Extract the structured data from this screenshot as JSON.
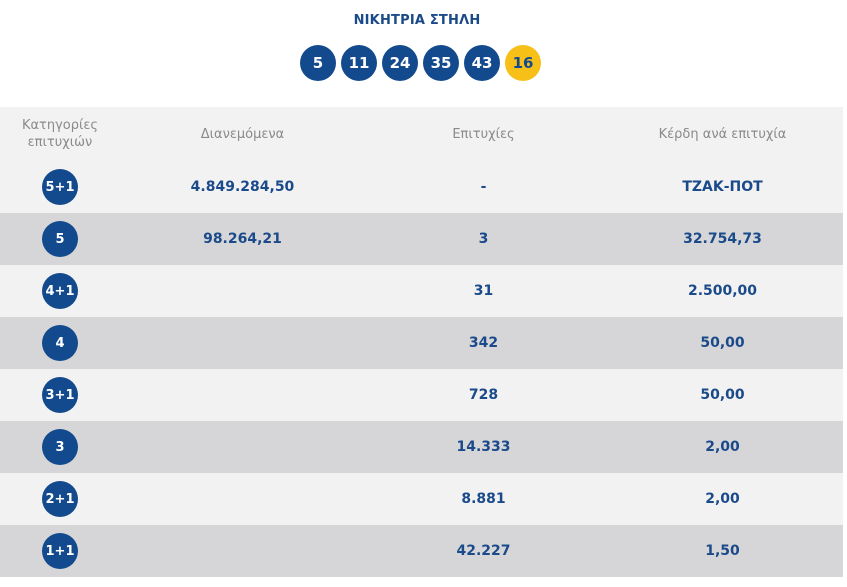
{
  "header": {
    "title": "ΝΙΚΗΤΡΙΑ ΣΤΗΛΗ",
    "numbers": [
      "5",
      "11",
      "24",
      "35",
      "43"
    ],
    "joker": "16"
  },
  "table": {
    "columns": [
      "Κατηγορίες επιτυχιών",
      "Διανεμόμενα",
      "Επιτυχίες",
      "Κέρδη ανά επιτυχία"
    ],
    "rows": [
      {
        "category": "5+1",
        "distributed": "4.849.284,50",
        "winners": "-",
        "prize": "ΤΖΑΚ-ΠΟΤ"
      },
      {
        "category": "5",
        "distributed": "98.264,21",
        "winners": "3",
        "prize": "32.754,73"
      },
      {
        "category": "4+1",
        "distributed": "",
        "winners": "31",
        "prize": "2.500,00"
      },
      {
        "category": "4",
        "distributed": "",
        "winners": "342",
        "prize": "50,00"
      },
      {
        "category": "3+1",
        "distributed": "",
        "winners": "728",
        "prize": "50,00"
      },
      {
        "category": "3",
        "distributed": "",
        "winners": "14.333",
        "prize": "2,00"
      },
      {
        "category": "2+1",
        "distributed": "",
        "winners": "8.881",
        "prize": "2,00"
      },
      {
        "category": "1+1",
        "distributed": "",
        "winners": "42.227",
        "prize": "1,50"
      }
    ]
  },
  "colors": {
    "primary": "#134a8e",
    "joker": "#f6c018",
    "row_light": "#f2f2f2",
    "row_dark": "#d6d6d8"
  }
}
